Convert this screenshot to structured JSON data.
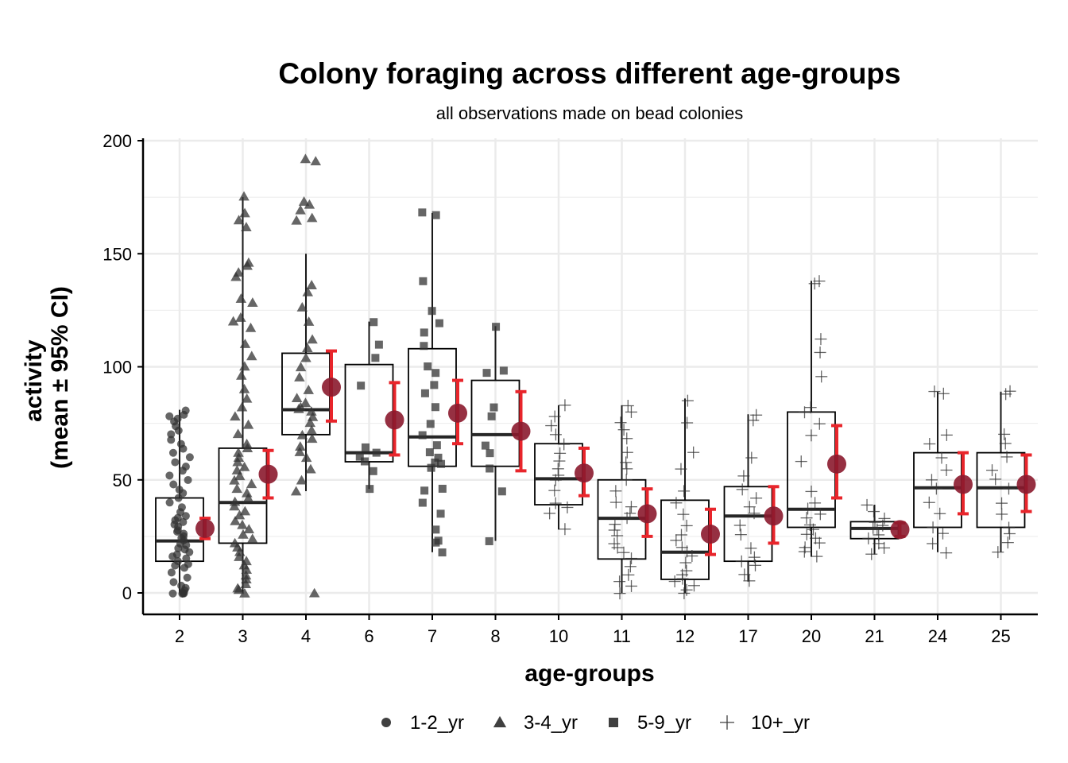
{
  "chart_data": {
    "type": "box",
    "title": "Colony foraging across different age-groups",
    "subtitle": "all observations made on bead colonies",
    "xlabel": "age-groups",
    "ylabel_lines": [
      "activity",
      "(mean ± 95% CI)"
    ],
    "ylim": [
      -10,
      200
    ],
    "yticks": [
      0,
      50,
      100,
      150,
      200
    ],
    "grid": true,
    "legend_position": "bottom",
    "colors": {
      "points": "#333333",
      "box": "#000000",
      "median": "#262626",
      "mean_point": "#8B1A2E",
      "errorbar": "#E8252B",
      "grid": "#EBEBEB"
    },
    "legend": [
      {
        "label": "1-2_yr",
        "shape": "circle"
      },
      {
        "label": "3-4_yr",
        "shape": "triangle"
      },
      {
        "label": "5-9_yr",
        "shape": "square"
      },
      {
        "label": "10+_yr",
        "shape": "plus"
      }
    ],
    "categories": [
      "2",
      "3",
      "4",
      "6",
      "7",
      "8",
      "10",
      "11",
      "12",
      "17",
      "20",
      "21",
      "24",
      "25"
    ],
    "groups": [
      {
        "age": "2",
        "shape": "circle",
        "box": {
          "q1": 14,
          "median": 23,
          "q3": 42,
          "whisker_low": 0,
          "whisker_high": 81
        },
        "mean": 28.5,
        "ci": [
          24,
          33
        ],
        "points": [
          0,
          0,
          0,
          0,
          0,
          1,
          2,
          3,
          5,
          7,
          9,
          11,
          12,
          13,
          14,
          15,
          16,
          17,
          18,
          19,
          20,
          21,
          22,
          23,
          24,
          25,
          26,
          27,
          28,
          29,
          30,
          31,
          32,
          33,
          34,
          36,
          38,
          40,
          42,
          44,
          46,
          48,
          50,
          52,
          54,
          56,
          58,
          60,
          62,
          64,
          66,
          68,
          70,
          72,
          74,
          76,
          77,
          78,
          79,
          81
        ]
      },
      {
        "age": "3",
        "shape": "triangle",
        "box": {
          "q1": 22,
          "median": 40,
          "q3": 64,
          "whisker_low": 0,
          "whisker_high": 175
        },
        "mean": 52.5,
        "ci": [
          42,
          63
        ],
        "points": [
          0,
          1,
          2,
          4,
          6,
          8,
          10,
          12,
          14,
          16,
          18,
          20,
          22,
          24,
          26,
          28,
          30,
          32,
          34,
          36,
          38,
          40,
          42,
          44,
          46,
          48,
          50,
          52,
          54,
          56,
          58,
          60,
          62,
          64,
          66,
          70,
          74,
          78,
          82,
          86,
          90,
          96,
          100,
          105,
          110,
          117,
          120,
          122,
          128,
          130,
          140,
          142,
          145,
          146,
          162,
          165,
          168,
          175
        ]
      },
      {
        "age": "4",
        "shape": "triangle",
        "box": {
          "q1": 70,
          "median": 81,
          "q3": 106,
          "whisker_low": 45,
          "whisker_high": 150
        },
        "mean": 91,
        "ci": [
          76,
          107
        ],
        "points": [
          0,
          45,
          50,
          55,
          60,
          62,
          65,
          68,
          70,
          72,
          75,
          78,
          80,
          81,
          82,
          84,
          86,
          90,
          95,
          100,
          104,
          108,
          112,
          120,
          126,
          133,
          136,
          165,
          166,
          169,
          172,
          173,
          191,
          192
        ]
      },
      {
        "age": "6",
        "shape": "square",
        "box": {
          "q1": 58,
          "median": 62,
          "q3": 101,
          "whisker_low": 46,
          "whisker_high": 120
        },
        "mean": 76.5,
        "ci": [
          61,
          93
        ],
        "points": [
          46,
          54,
          58,
          60,
          62,
          64,
          92,
          104,
          110,
          120
        ]
      },
      {
        "age": "7",
        "shape": "square",
        "box": {
          "q1": 56,
          "median": 69,
          "q3": 108,
          "whisker_low": 18,
          "whisker_high": 168
        },
        "mean": 79.5,
        "ci": [
          66,
          94
        ],
        "points": [
          18,
          22,
          23,
          28,
          35,
          40,
          45,
          46,
          55,
          57,
          58,
          60,
          62,
          65,
          70,
          75,
          82,
          88,
          92,
          97,
          100,
          109,
          115,
          119,
          125,
          138,
          167,
          168
        ]
      },
      {
        "age": "8",
        "shape": "square",
        "box": {
          "q1": 56,
          "median": 70,
          "q3": 94,
          "whisker_low": 23,
          "whisker_high": 118
        },
        "mean": 71.5,
        "ci": [
          54,
          89
        ],
        "points": [
          23,
          45,
          55,
          62,
          65,
          78,
          82,
          97,
          98,
          118
        ]
      },
      {
        "age": "10",
        "shape": "plus",
        "box": {
          "q1": 39,
          "median": 50.5,
          "q3": 66,
          "whisker_low": 28,
          "whisker_high": 83
        },
        "mean": 53,
        "ci": [
          43,
          64
        ],
        "points": [
          28,
          35,
          38,
          40,
          45,
          50,
          52,
          55,
          58,
          62,
          66,
          70,
          74,
          78,
          83
        ]
      },
      {
        "age": "11",
        "shape": "plus",
        "box": {
          "q1": 15,
          "median": 33,
          "q3": 50,
          "whisker_low": 0,
          "whisker_high": 83
        },
        "mean": 35,
        "ci": [
          25,
          46
        ],
        "points": [
          0,
          3,
          5,
          8,
          12,
          15,
          18,
          20,
          22,
          25,
          28,
          30,
          33,
          35,
          38,
          40,
          45,
          50,
          55,
          58,
          62,
          68,
          72,
          75,
          80,
          83
        ]
      },
      {
        "age": "12",
        "shape": "plus",
        "box": {
          "q1": 6,
          "median": 18,
          "q3": 41,
          "whisker_low": 0,
          "whisker_high": 86
        },
        "mean": 26,
        "ci": [
          17,
          37
        ],
        "points": [
          0,
          1,
          3,
          5,
          6,
          8,
          10,
          13,
          16,
          18,
          20,
          23,
          26,
          30,
          35,
          40,
          45,
          55,
          62,
          75,
          85
        ]
      },
      {
        "age": "17",
        "shape": "plus",
        "box": {
          "q1": 14,
          "median": 34,
          "q3": 47,
          "whisker_low": 5,
          "whisker_high": 79
        },
        "mean": 34,
        "ci": [
          22,
          47
        ],
        "points": [
          5,
          8,
          12,
          14,
          16,
          20,
          26,
          30,
          35,
          38,
          42,
          46,
          52,
          60,
          76,
          79
        ]
      },
      {
        "age": "20",
        "shape": "plus",
        "box": {
          "q1": 29,
          "median": 37,
          "q3": 80,
          "whisker_low": 16,
          "whisker_high": 138
        },
        "mean": 57,
        "ci": [
          42,
          74
        ],
        "points": [
          16,
          18,
          20,
          22,
          24,
          26,
          28,
          30,
          33,
          35,
          37,
          40,
          45,
          58,
          70,
          75,
          80,
          82,
          96,
          106,
          112,
          137,
          138
        ]
      },
      {
        "age": "21",
        "shape": "plus",
        "box": {
          "q1": 24,
          "median": 28.5,
          "q3": 31.5,
          "whisker_low": 17,
          "whisker_high": 39
        },
        "mean": 28,
        "ci": [
          25,
          31
        ],
        "points": [
          17,
          20,
          22,
          24,
          26,
          28,
          29,
          30,
          31,
          33,
          36,
          39
        ]
      },
      {
        "age": "24",
        "shape": "plus",
        "box": {
          "q1": 29,
          "median": 46.5,
          "q3": 62,
          "whisker_low": 18,
          "whisker_high": 89
        },
        "mean": 48,
        "ci": [
          35,
          62
        ],
        "points": [
          18,
          22,
          26,
          29,
          35,
          40,
          46,
          50,
          54,
          60,
          66,
          70,
          88,
          89
        ]
      },
      {
        "age": "25",
        "shape": "plus",
        "box": {
          "q1": 29,
          "median": 46.5,
          "q3": 62,
          "whisker_low": 18,
          "whisker_high": 89
        },
        "mean": 48,
        "ci": [
          36,
          61
        ],
        "points": [
          18,
          22,
          26,
          29,
          35,
          40,
          46,
          50,
          54,
          60,
          66,
          70,
          88,
          89
        ]
      }
    ]
  }
}
